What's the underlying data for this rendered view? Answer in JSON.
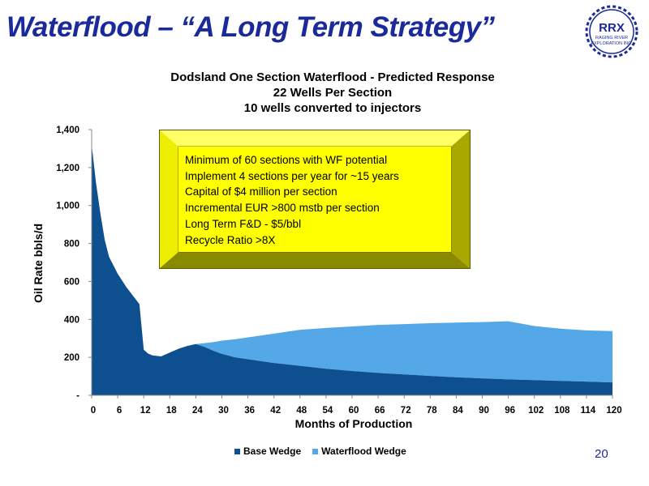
{
  "slide": {
    "title": "Waterflood – “A Long Term Strategy”",
    "page_number": "20",
    "logo": {
      "text": "RRX",
      "subtext_1": "RAGING RIVER",
      "subtext_2": "EXPLORATION INC."
    }
  },
  "callout": {
    "lines": [
      "Minimum of 60 sections with WF potential",
      "Implement 4 sections per year for ~15 years",
      "Capital of $4 million per section",
      "Incremental EUR >800 mstb per section",
      "Long Term F&D - $5/bbl",
      "Recycle Ratio >8X"
    ]
  },
  "colors": {
    "base_wedge": "#0d4f8f",
    "waterflood_wedge": "#55a8e8",
    "title": "#1a2a9a",
    "callout_fill": "#ffff00"
  },
  "chart_data": {
    "type": "area",
    "stacked": true,
    "title_lines": [
      "Dodsland One Section Waterflood -  Predicted Response",
      "22 Wells Per Section",
      "10 wells converted to injectors"
    ],
    "xlabel": "Months of Production",
    "ylabel": "Oil Rate bbls/d",
    "xlim": [
      0,
      120
    ],
    "ylim": [
      0,
      1400
    ],
    "x_ticks": [
      0,
      6,
      12,
      18,
      24,
      30,
      36,
      42,
      48,
      54,
      60,
      66,
      72,
      78,
      84,
      90,
      96,
      102,
      108,
      114,
      120
    ],
    "y_ticks": [
      {
        "value": 0,
        "label": "-"
      },
      {
        "value": 200,
        "label": "200"
      },
      {
        "value": 400,
        "label": "400"
      },
      {
        "value": 600,
        "label": "600"
      },
      {
        "value": 800,
        "label": "800"
      },
      {
        "value": 1000,
        "label": "1,000"
      },
      {
        "value": 1200,
        "label": "1,200"
      },
      {
        "value": 1400,
        "label": "1,400"
      }
    ],
    "grid": false,
    "legend_position": "bottom",
    "x": [
      0,
      1,
      2,
      3,
      4,
      6,
      8,
      10,
      11,
      12,
      13,
      14,
      16,
      18,
      20,
      22,
      24,
      26,
      28,
      30,
      33,
      36,
      42,
      48,
      54,
      60,
      66,
      72,
      78,
      84,
      90,
      96,
      102,
      108,
      114,
      120
    ],
    "series": [
      {
        "name": "Base Wedge",
        "values": [
          1320,
          1120,
          960,
          820,
          730,
          640,
          570,
          510,
          480,
          240,
          220,
          210,
          205,
          225,
          245,
          260,
          270,
          255,
          235,
          218,
          200,
          190,
          170,
          155,
          140,
          128,
          118,
          110,
          102,
          95,
          89,
          84,
          80,
          76,
          72,
          68
        ]
      },
      {
        "name": "Waterflood Wedge",
        "values": [
          0,
          0,
          0,
          0,
          0,
          0,
          0,
          0,
          0,
          0,
          0,
          0,
          0,
          0,
          0,
          0,
          0,
          20,
          45,
          70,
          95,
          115,
          155,
          190,
          215,
          235,
          253,
          265,
          278,
          288,
          297,
          306,
          285,
          275,
          270,
          270
        ]
      }
    ]
  }
}
